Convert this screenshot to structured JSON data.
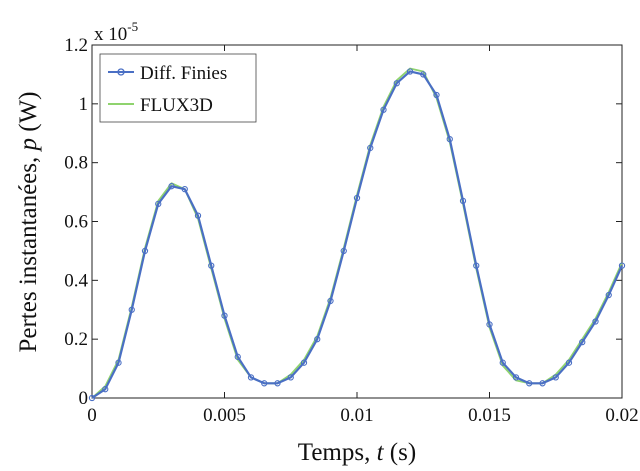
{
  "chart_data": {
    "type": "line",
    "xlabel_prefix": "Temps, ",
    "xlabel_var": "t",
    "xlabel_unit": " (s)",
    "ylabel_prefix": "Pertes instantanées, ",
    "ylabel_var": "p",
    "ylabel_unit": " (W)",
    "y_multiplier_base": "x 10",
    "y_multiplier_exp": "-5",
    "xlim": [
      0,
      0.02
    ],
    "ylim": [
      0,
      1.2
    ],
    "x_ticks": [
      0,
      0.005,
      0.01,
      0.015,
      0.02
    ],
    "x_tick_labels": [
      "0",
      "0.005",
      "0.01",
      "0.015",
      "0.02"
    ],
    "y_ticks": [
      0,
      0.2,
      0.4,
      0.6,
      0.8,
      1,
      1.2
    ],
    "y_tick_labels": [
      "0",
      "0.2",
      "0.4",
      "0.6",
      "0.8",
      "1",
      "1.2"
    ],
    "grid": false,
    "legend_position": "top-left",
    "x": [
      0,
      0.0005,
      0.001,
      0.0015,
      0.002,
      0.0025,
      0.003,
      0.0035,
      0.004,
      0.0045,
      0.005,
      0.0055,
      0.006,
      0.0065,
      0.007,
      0.0075,
      0.008,
      0.0085,
      0.009,
      0.0095,
      0.01,
      0.0105,
      0.011,
      0.0115,
      0.012,
      0.0125,
      0.013,
      0.0135,
      0.014,
      0.0145,
      0.015,
      0.0155,
      0.016,
      0.0165,
      0.017,
      0.0175,
      0.018,
      0.0185,
      0.019,
      0.0195,
      0.02
    ],
    "series": [
      {
        "name": "Diff. Finies",
        "color": "#4a6fc4",
        "values": [
          0.0,
          0.03,
          0.12,
          0.3,
          0.5,
          0.66,
          0.72,
          0.71,
          0.62,
          0.45,
          0.28,
          0.14,
          0.07,
          0.05,
          0.05,
          0.07,
          0.12,
          0.2,
          0.33,
          0.5,
          0.68,
          0.85,
          0.98,
          1.07,
          1.11,
          1.1,
          1.03,
          0.88,
          0.67,
          0.45,
          0.25,
          0.12,
          0.07,
          0.05,
          0.05,
          0.07,
          0.12,
          0.19,
          0.26,
          0.35,
          0.45
        ]
      },
      {
        "name": "FLUX3D",
        "color": "#8fd36e",
        "values": [
          0.0,
          0.04,
          0.13,
          0.31,
          0.51,
          0.67,
          0.73,
          0.71,
          0.61,
          0.44,
          0.27,
          0.13,
          0.07,
          0.05,
          0.05,
          0.08,
          0.13,
          0.21,
          0.34,
          0.51,
          0.69,
          0.86,
          0.99,
          1.08,
          1.12,
          1.11,
          1.02,
          0.87,
          0.66,
          0.44,
          0.24,
          0.11,
          0.06,
          0.05,
          0.05,
          0.08,
          0.13,
          0.2,
          0.27,
          0.36,
          0.46
        ]
      }
    ]
  }
}
